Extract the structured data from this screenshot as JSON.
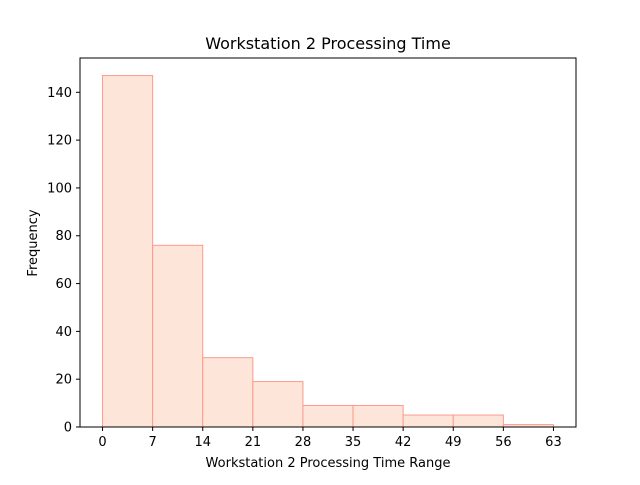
{
  "chart_data": {
    "type": "bar",
    "title": "Workstation 2 Processing Time",
    "xlabel": "Workstation 2 Processing Time Range",
    "ylabel": "Frequency",
    "bin_edges": [
      0,
      7,
      14,
      21,
      28,
      35,
      42,
      49,
      56,
      63
    ],
    "values": [
      147,
      76,
      29,
      19,
      9,
      9,
      5,
      5,
      1
    ],
    "xlim": [
      -3.15,
      66.15
    ],
    "ylim": [
      0,
      154.35
    ],
    "xticks": [
      "0",
      "7",
      "14",
      "21",
      "28",
      "35",
      "42",
      "49",
      "56",
      "63"
    ],
    "yticks": [
      "0",
      "20",
      "40",
      "60",
      "80",
      "100",
      "120",
      "140"
    ],
    "ytick_values": [
      0,
      20,
      40,
      60,
      80,
      100,
      120,
      140
    ],
    "grid": false,
    "legend": "none",
    "colors": {
      "bar_fill": "#fee5d9",
      "bar_edge": "#fb9a8c",
      "axis": "#000000"
    }
  }
}
